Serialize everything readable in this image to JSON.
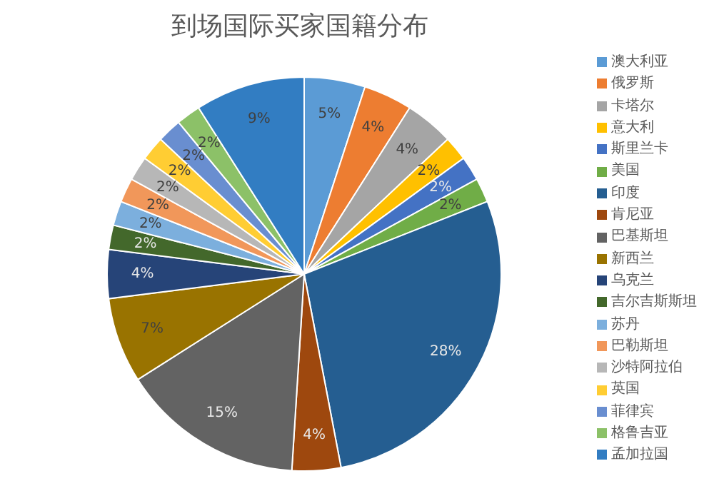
{
  "chart_data": {
    "type": "pie",
    "title": "到场国际买家国籍分布",
    "categories": [
      "澳大利亚",
      "俄罗斯",
      "卡塔尔",
      "意大利",
      "斯里兰卡",
      "美国",
      "印度",
      "肯尼亚",
      "巴基斯坦",
      "新西兰",
      "乌克兰",
      "吉尔吉斯斯坦",
      "苏丹",
      "巴勒斯坦",
      "沙特阿拉伯",
      "英国",
      "菲律宾",
      "格鲁吉亚",
      "孟加拉国"
    ],
    "values": [
      5,
      4,
      4,
      2,
      2,
      2,
      28,
      4,
      15,
      7,
      4,
      2,
      2,
      2,
      2,
      2,
      2,
      2,
      9
    ],
    "value_labels": [
      "5%",
      "4%",
      "4%",
      "2%",
      "2%",
      "2%",
      "28%",
      "4%",
      "15%",
      "7%",
      "4%",
      "2%",
      "2%",
      "2%",
      "2%",
      "2%",
      "2%",
      "2%",
      "9%"
    ],
    "colors": [
      "#5b9bd5",
      "#ed7d31",
      "#a5a5a5",
      "#ffc000",
      "#4472c4",
      "#70ad47",
      "#255e91",
      "#9e480e",
      "#636363",
      "#997300",
      "#264478",
      "#43682b",
      "#7cafdd",
      "#f1975a",
      "#b7b7b7",
      "#ffcd33",
      "#698ed0",
      "#8cc168",
      "#327dc2"
    ],
    "legend": "right"
  }
}
